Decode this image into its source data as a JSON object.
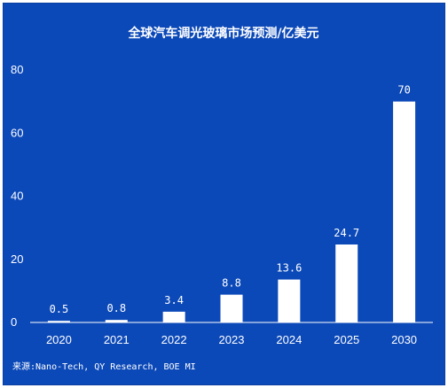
{
  "chart_data": {
    "type": "bar",
    "title": "全球汽车调光玻璃市场预测/亿美元",
    "categories": [
      "2020",
      "2021",
      "2022",
      "2023",
      "2024",
      "2025",
      "2030"
    ],
    "values": [
      0.5,
      0.8,
      3.4,
      8.8,
      13.6,
      24.7,
      70
    ],
    "data_labels": [
      "0.5",
      "0.8",
      "3.4",
      "8.8",
      "13.6",
      "24.7",
      "70"
    ],
    "yticks": [
      0,
      20,
      40,
      60,
      80
    ],
    "ylim": [
      0,
      80
    ],
    "grid": false,
    "source": "来源:Nano-Tech, QY Research, BOE MI",
    "colors": {
      "background": "#0c49b8",
      "bar": "#ffffff",
      "text": "#ffffff"
    }
  }
}
